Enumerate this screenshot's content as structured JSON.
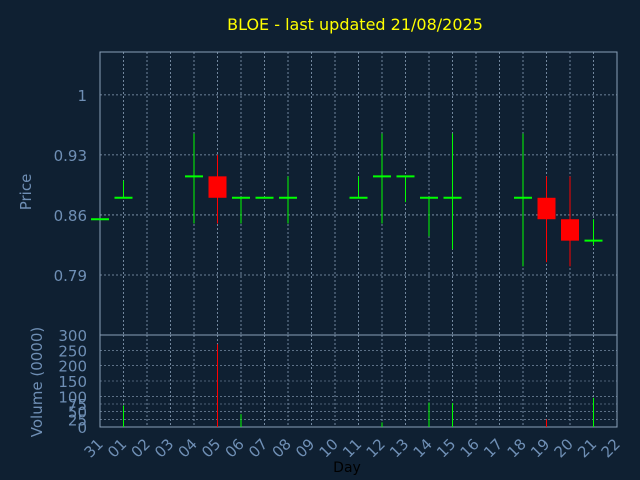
{
  "chart_data": [
    {
      "type": "candlestick",
      "title": "BLOE - last updated 21/08/2025",
      "ylabel": "Price",
      "ylim": [
        0.72,
        1.05
      ],
      "yticks": [
        "0.79",
        "0.86",
        "0.93",
        "1"
      ],
      "grid": true,
      "categories": [
        "31",
        "01",
        "02",
        "03",
        "04",
        "05",
        "06",
        "07",
        "08",
        "09",
        "10",
        "11",
        "12",
        "13",
        "14",
        "15",
        "16",
        "17",
        "18",
        "19",
        "20",
        "21",
        "22"
      ],
      "ohlc": [
        {
          "x": "31",
          "open": 0.855,
          "high": 0.855,
          "low": 0.855,
          "close": 0.855
        },
        {
          "x": "01",
          "open": 0.88,
          "high": 0.9,
          "low": 0.88,
          "close": 0.88
        },
        {
          "x": "04",
          "open": 0.905,
          "high": 0.955,
          "low": 0.85,
          "close": 0.905
        },
        {
          "x": "05",
          "open": 0.905,
          "high": 0.93,
          "low": 0.85,
          "close": 0.88
        },
        {
          "x": "06",
          "open": 0.88,
          "high": 0.88,
          "low": 0.85,
          "close": 0.88
        },
        {
          "x": "07",
          "open": 0.88,
          "high": 0.88,
          "low": 0.88,
          "close": 0.88
        },
        {
          "x": "08",
          "open": 0.88,
          "high": 0.905,
          "low": 0.85,
          "close": 0.88
        },
        {
          "x": "11",
          "open": 0.88,
          "high": 0.905,
          "low": 0.88,
          "close": 0.88
        },
        {
          "x": "12",
          "open": 0.905,
          "high": 0.955,
          "low": 0.85,
          "close": 0.905
        },
        {
          "x": "13",
          "open": 0.905,
          "high": 0.905,
          "low": 0.875,
          "close": 0.905
        },
        {
          "x": "14",
          "open": 0.88,
          "high": 0.88,
          "low": 0.835,
          "close": 0.88
        },
        {
          "x": "15",
          "open": 0.88,
          "high": 0.955,
          "low": 0.82,
          "close": 0.88
        },
        {
          "x": "18",
          "open": 0.88,
          "high": 0.955,
          "low": 0.8,
          "close": 0.88
        },
        {
          "x": "19",
          "open": 0.88,
          "high": 0.905,
          "low": 0.805,
          "close": 0.855
        },
        {
          "x": "20",
          "open": 0.855,
          "high": 0.905,
          "low": 0.8,
          "close": 0.83
        },
        {
          "x": "21",
          "open": 0.83,
          "high": 0.855,
          "low": 0.825,
          "close": 0.83
        }
      ],
      "up_color": "#00ff00",
      "down_color": "#ff0000",
      "background": "#0f2032",
      "title_color": "#ffff00",
      "label_color": "#6f8fb5",
      "grid_color": "#8aa0b8"
    },
    {
      "type": "bar",
      "ylabel": "Volume (0000)",
      "xlabel": "Day",
      "ylim": [
        0,
        300
      ],
      "yticks": [
        "0",
        "25",
        "50",
        "75",
        "100",
        "150",
        "200",
        "250",
        "300"
      ],
      "values": [
        {
          "x": "01",
          "value": 70,
          "direction": "up"
        },
        {
          "x": "05",
          "value": 270,
          "direction": "down"
        },
        {
          "x": "06",
          "value": 42,
          "direction": "up"
        },
        {
          "x": "12",
          "value": 15,
          "direction": "up"
        },
        {
          "x": "14",
          "value": 80,
          "direction": "up"
        },
        {
          "x": "15",
          "value": 78,
          "direction": "up"
        },
        {
          "x": "19",
          "value": 25,
          "direction": "down"
        },
        {
          "x": "21",
          "value": 95,
          "direction": "up"
        }
      ]
    }
  ]
}
